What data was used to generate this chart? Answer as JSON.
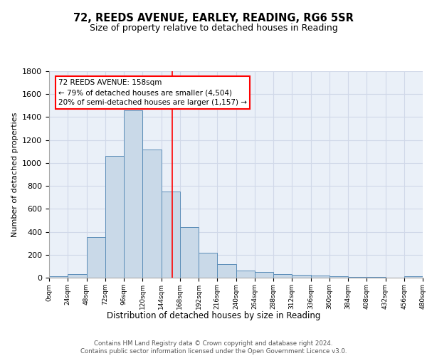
{
  "title1": "72, REEDS AVENUE, EARLEY, READING, RG6 5SR",
  "title2": "Size of property relative to detached houses in Reading",
  "xlabel": "Distribution of detached houses by size in Reading",
  "ylabel": "Number of detached properties",
  "bar_edges": [
    0,
    24,
    48,
    72,
    96,
    120,
    144,
    168,
    192,
    216,
    240,
    264,
    288,
    312,
    336,
    360,
    384,
    408,
    432,
    456,
    480
  ],
  "bar_heights": [
    15,
    30,
    355,
    1060,
    1460,
    1120,
    750,
    440,
    220,
    120,
    60,
    50,
    30,
    22,
    18,
    10,
    8,
    5,
    3,
    15
  ],
  "bar_color": "#c9d9e8",
  "bar_edge_color": "#5b8db8",
  "grid_color": "#d0d8e8",
  "background_color": "#eaf0f8",
  "property_line_x": 158,
  "property_line_color": "red",
  "annotation_text": "72 REEDS AVENUE: 158sqm\n← 79% of detached houses are smaller (4,504)\n20% of semi-detached houses are larger (1,157) →",
  "annotation_box_color": "white",
  "annotation_box_edge_color": "red",
  "footer_text": "Contains HM Land Registry data © Crown copyright and database right 2024.\nContains public sector information licensed under the Open Government Licence v3.0.",
  "ylim": [
    0,
    1800
  ],
  "yticks": [
    0,
    200,
    400,
    600,
    800,
    1000,
    1200,
    1400,
    1600,
    1800
  ],
  "tick_labels": [
    "0sqm",
    "24sqm",
    "48sqm",
    "72sqm",
    "96sqm",
    "120sqm",
    "144sqm",
    "168sqm",
    "192sqm",
    "216sqm",
    "240sqm",
    "264sqm",
    "288sqm",
    "312sqm",
    "336sqm",
    "360sqm",
    "384sqm",
    "408sqm",
    "432sqm",
    "456sqm",
    "480sqm"
  ]
}
